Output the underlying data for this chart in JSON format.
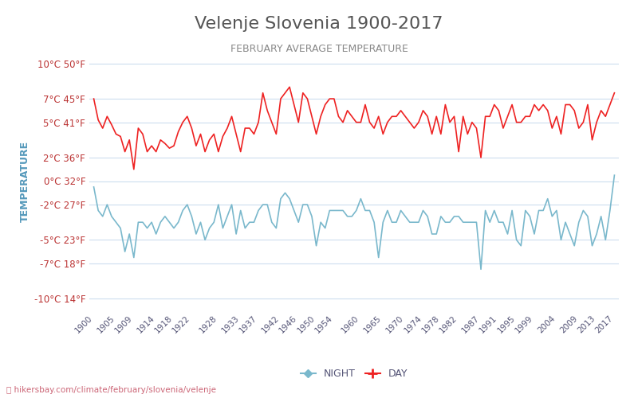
{
  "title": "Velenje Slovenia 1900-2017",
  "subtitle": "FEBRUARY AVERAGE TEMPERATURE",
  "ylabel": "TEMPERATURE",
  "footer": "hikersbay.com/climate/february/slovenia/velenje",
  "title_color": "#555555",
  "subtitle_color": "#888888",
  "ylabel_color": "#5599bb",
  "bg_color": "#ffffff",
  "grid_color": "#ccddee",
  "yticks_celsius": [
    10,
    7,
    5,
    2,
    0,
    -2,
    -5,
    -7,
    -10
  ],
  "yticks_fahrenheit": [
    50,
    45,
    41,
    36,
    32,
    27,
    23,
    18,
    14
  ],
  "ylim": [
    -11,
    11
  ],
  "xlim": [
    1899,
    2018
  ],
  "years": [
    1900,
    1901,
    1902,
    1903,
    1904,
    1905,
    1906,
    1907,
    1908,
    1909,
    1910,
    1911,
    1912,
    1913,
    1914,
    1915,
    1916,
    1917,
    1918,
    1919,
    1920,
    1921,
    1922,
    1923,
    1924,
    1925,
    1926,
    1927,
    1928,
    1929,
    1930,
    1931,
    1932,
    1933,
    1934,
    1935,
    1936,
    1937,
    1938,
    1939,
    1940,
    1941,
    1942,
    1943,
    1944,
    1945,
    1946,
    1947,
    1948,
    1949,
    1950,
    1951,
    1952,
    1953,
    1954,
    1955,
    1956,
    1957,
    1958,
    1959,
    1960,
    1961,
    1962,
    1963,
    1964,
    1965,
    1966,
    1967,
    1968,
    1969,
    1970,
    1971,
    1972,
    1973,
    1974,
    1975,
    1976,
    1977,
    1978,
    1979,
    1980,
    1981,
    1982,
    1983,
    1984,
    1985,
    1986,
    1987,
    1988,
    1989,
    1990,
    1991,
    1992,
    1993,
    1994,
    1995,
    1996,
    1997,
    1998,
    1999,
    2000,
    2001,
    2002,
    2003,
    2004,
    2005,
    2006,
    2007,
    2008,
    2009,
    2010,
    2011,
    2012,
    2013,
    2014,
    2015,
    2016,
    2017
  ],
  "day_temps": [
    7.0,
    5.2,
    4.5,
    5.5,
    4.8,
    4.0,
    3.8,
    2.5,
    3.5,
    1.0,
    4.5,
    4.0,
    2.5,
    3.0,
    2.5,
    3.5,
    3.2,
    2.8,
    3.0,
    4.2,
    5.0,
    5.5,
    4.5,
    3.0,
    4.0,
    2.5,
    3.5,
    4.0,
    2.5,
    3.8,
    4.5,
    5.5,
    4.0,
    2.5,
    4.5,
    4.5,
    4.0,
    5.0,
    7.5,
    6.0,
    5.0,
    4.0,
    7.0,
    7.5,
    8.0,
    6.5,
    5.0,
    7.5,
    7.0,
    5.5,
    4.0,
    5.5,
    6.5,
    7.0,
    7.0,
    5.5,
    5.0,
    6.0,
    5.5,
    5.0,
    5.0,
    6.5,
    5.0,
    4.5,
    5.5,
    4.0,
    5.0,
    5.5,
    5.5,
    6.0,
    5.5,
    5.0,
    4.5,
    5.0,
    6.0,
    5.5,
    4.0,
    5.5,
    4.0,
    6.5,
    5.0,
    5.5,
    2.5,
    5.5,
    4.0,
    5.0,
    4.5,
    2.0,
    5.5,
    5.5,
    6.5,
    6.0,
    4.5,
    5.5,
    6.5,
    5.0,
    5.0,
    5.5,
    5.5,
    6.5,
    6.0,
    6.5,
    6.0,
    4.5,
    5.5,
    4.0,
    6.5,
    6.5,
    6.0,
    4.5,
    5.0,
    6.5,
    3.5,
    5.0,
    6.0,
    5.5,
    6.5,
    7.5
  ],
  "night_temps": [
    -0.5,
    -2.5,
    -3.0,
    -2.0,
    -3.0,
    -3.5,
    -4.0,
    -6.0,
    -4.5,
    -6.5,
    -3.5,
    -3.5,
    -4.0,
    -3.5,
    -4.5,
    -3.5,
    -3.0,
    -3.5,
    -4.0,
    -3.5,
    -2.5,
    -2.0,
    -3.0,
    -4.5,
    -3.5,
    -5.0,
    -4.0,
    -3.5,
    -2.0,
    -4.0,
    -3.0,
    -2.0,
    -4.5,
    -2.5,
    -4.0,
    -3.5,
    -3.5,
    -2.5,
    -2.0,
    -2.0,
    -3.5,
    -4.0,
    -1.5,
    -1.0,
    -1.5,
    -2.5,
    -3.5,
    -2.0,
    -2.0,
    -3.0,
    -5.5,
    -3.5,
    -4.0,
    -2.5,
    -2.5,
    -2.5,
    -2.5,
    -3.0,
    -3.0,
    -2.5,
    -1.5,
    -2.5,
    -2.5,
    -3.5,
    -6.5,
    -3.5,
    -2.5,
    -3.5,
    -3.5,
    -2.5,
    -3.0,
    -3.5,
    -3.5,
    -3.5,
    -2.5,
    -3.0,
    -4.5,
    -4.5,
    -3.0,
    -3.5,
    -3.5,
    -3.0,
    -3.0,
    -3.5,
    -3.5,
    -3.5,
    -3.5,
    -7.5,
    -2.5,
    -3.5,
    -2.5,
    -3.5,
    -3.5,
    -4.5,
    -2.5,
    -5.0,
    -5.5,
    -2.5,
    -3.0,
    -4.5,
    -2.5,
    -2.5,
    -1.5,
    -3.0,
    -2.5,
    -5.0,
    -3.5,
    -4.5,
    -5.5,
    -3.5,
    -2.5,
    -3.0,
    -5.5,
    -4.5,
    -3.0,
    -5.0,
    -2.5,
    0.5
  ],
  "day_color": "#ee2222",
  "night_color": "#7ab8cc",
  "line_width": 1.2,
  "xtick_years": [
    1900,
    1905,
    1909,
    1914,
    1918,
    1922,
    1928,
    1933,
    1937,
    1942,
    1946,
    1950,
    1954,
    1960,
    1965,
    1970,
    1974,
    1978,
    1982,
    1987,
    1991,
    1995,
    1999,
    2004,
    2009,
    2013,
    2017
  ]
}
